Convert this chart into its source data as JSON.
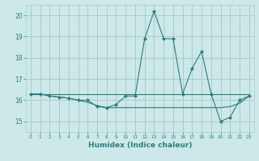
{
  "xlabel": "Humidex (Indice chaleur)",
  "x": [
    0,
    1,
    2,
    3,
    4,
    5,
    6,
    7,
    8,
    9,
    10,
    11,
    12,
    13,
    14,
    15,
    16,
    17,
    18,
    19,
    20,
    21,
    22,
    23
  ],
  "line1": [
    16.3,
    16.3,
    16.2,
    16.15,
    16.1,
    16.0,
    16.0,
    15.7,
    15.65,
    15.8,
    16.2,
    16.2,
    18.9,
    20.2,
    18.9,
    18.9,
    16.3,
    17.5,
    18.3,
    16.3,
    15.0,
    15.2,
    16.0,
    16.2
  ],
  "line2": [
    16.3,
    16.3,
    16.2,
    16.15,
    16.1,
    16.0,
    15.9,
    15.75,
    15.65,
    15.65,
    15.65,
    15.65,
    15.65,
    15.65,
    15.65,
    15.65,
    15.65,
    15.65,
    15.65,
    15.65,
    15.65,
    15.7,
    15.85,
    16.2
  ],
  "line3": [
    16.3,
    16.3,
    16.3,
    16.3,
    16.3,
    16.3,
    16.3,
    16.3,
    16.3,
    16.3,
    16.3,
    16.3,
    16.3,
    16.3,
    16.3,
    16.3,
    16.3,
    16.3,
    16.3,
    16.3,
    16.3,
    16.3,
    16.3,
    16.3
  ],
  "line_color": "#2e7d7d",
  "bg_color": "#cce8e8",
  "grid_color": "#aacccc",
  "ylim": [
    14.5,
    20.5
  ],
  "xlim": [
    -0.5,
    23.5
  ],
  "yticks": [
    15,
    16,
    17,
    18,
    19,
    20
  ],
  "xticks": [
    0,
    1,
    2,
    3,
    4,
    5,
    6,
    7,
    8,
    9,
    10,
    11,
    12,
    13,
    14,
    15,
    16,
    17,
    18,
    19,
    20,
    21,
    22,
    23
  ]
}
